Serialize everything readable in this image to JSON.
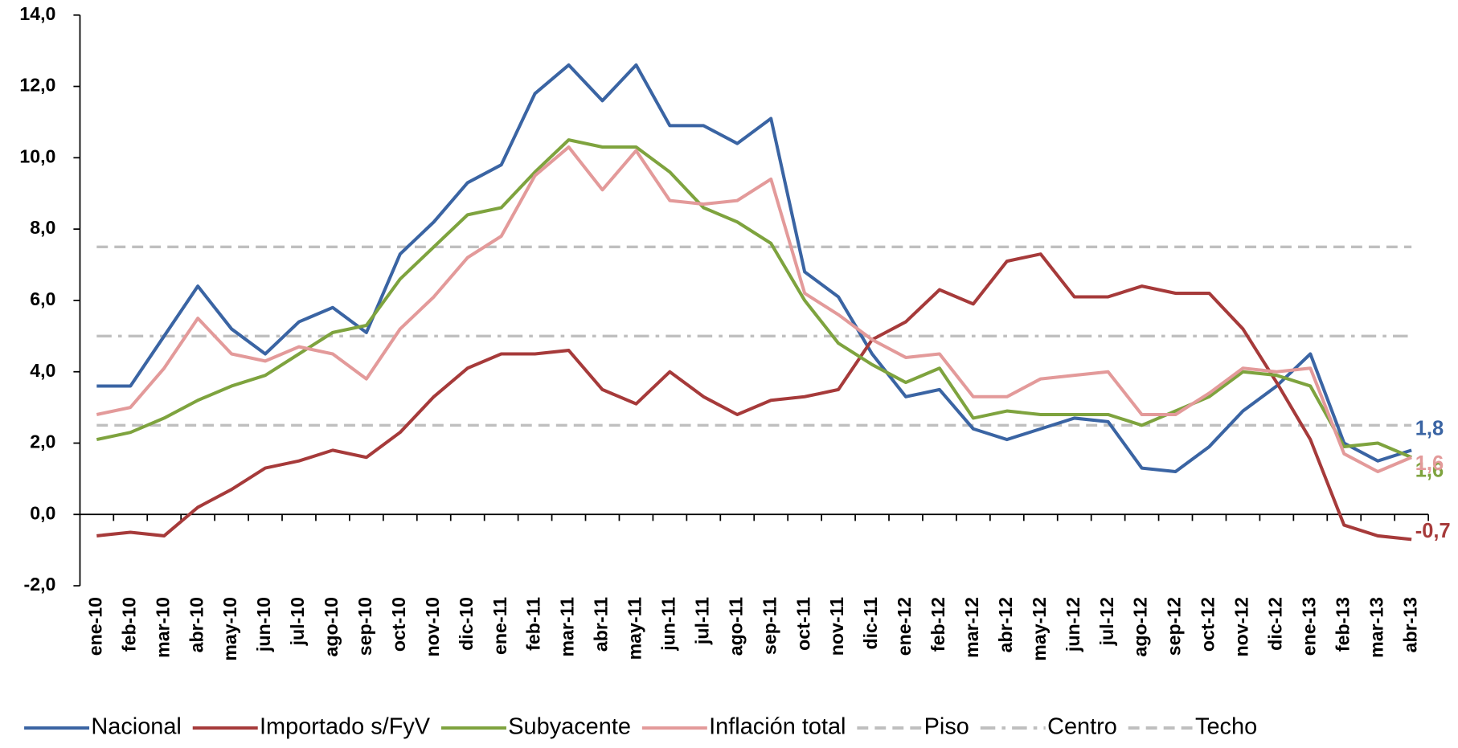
{
  "chart_data": {
    "type": "line",
    "categories": [
      "ene-10",
      "feb-10",
      "mar-10",
      "abr-10",
      "may-10",
      "jun-10",
      "jul-10",
      "ago-10",
      "sep-10",
      "oct-10",
      "nov-10",
      "dic-10",
      "ene-11",
      "feb-11",
      "mar-11",
      "abr-11",
      "may-11",
      "jun-11",
      "jul-11",
      "ago-11",
      "sep-11",
      "oct-11",
      "nov-11",
      "dic-11",
      "ene-12",
      "feb-12",
      "mar-12",
      "abr-12",
      "may-12",
      "jun-12",
      "jul-12",
      "ago-12",
      "sep-12",
      "oct-12",
      "nov-12",
      "dic-12",
      "ene-13",
      "feb-13",
      "mar-13",
      "abr-13"
    ],
    "series": [
      {
        "name": "Nacional",
        "color": "#3a64a3",
        "values": [
          3.6,
          3.6,
          5.0,
          6.4,
          5.2,
          4.5,
          5.4,
          5.8,
          5.1,
          7.3,
          8.2,
          9.3,
          9.8,
          11.8,
          12.6,
          11.6,
          12.6,
          10.9,
          10.9,
          10.4,
          11.1,
          6.8,
          6.1,
          4.5,
          3.3,
          3.5,
          2.4,
          2.1,
          2.4,
          2.7,
          2.6,
          1.3,
          1.2,
          1.9,
          2.9,
          3.6,
          4.5,
          2.0,
          1.5,
          1.8
        ],
        "value_labels": [
          null,
          null,
          null,
          null,
          null,
          null,
          null,
          null,
          null,
          null,
          null,
          null,
          null,
          null,
          null,
          null,
          null,
          null,
          null,
          null,
          null,
          null,
          null,
          null,
          null,
          null,
          null,
          null,
          null,
          null,
          null,
          null,
          null,
          null,
          null,
          null,
          null,
          null,
          null,
          "1,8"
        ]
      },
      {
        "name": "Importado s/FyV",
        "color": "#a63a3a",
        "values": [
          -0.6,
          -0.5,
          -0.6,
          0.2,
          0.7,
          1.3,
          1.5,
          1.8,
          1.6,
          2.3,
          3.3,
          4.1,
          4.5,
          4.5,
          4.6,
          3.5,
          3.1,
          4.0,
          3.3,
          2.8,
          3.2,
          3.3,
          3.5,
          4.9,
          5.4,
          6.3,
          5.9,
          7.1,
          7.3,
          6.1,
          6.1,
          6.4,
          6.2,
          6.2,
          5.2,
          3.7,
          2.1,
          -0.3,
          -0.6,
          -0.7
        ],
        "value_labels": [
          null,
          null,
          null,
          null,
          null,
          null,
          null,
          null,
          null,
          null,
          null,
          null,
          null,
          null,
          null,
          null,
          null,
          null,
          null,
          null,
          null,
          null,
          null,
          null,
          null,
          null,
          null,
          null,
          null,
          null,
          null,
          null,
          null,
          null,
          null,
          null,
          null,
          null,
          null,
          "-0,7"
        ]
      },
      {
        "name": "Subyacente",
        "color": "#7ea33e",
        "values": [
          2.1,
          2.3,
          2.7,
          3.2,
          3.6,
          3.9,
          4.5,
          5.1,
          5.3,
          6.6,
          7.5,
          8.4,
          8.6,
          9.6,
          10.5,
          10.3,
          10.3,
          9.6,
          8.6,
          8.2,
          7.6,
          6.0,
          4.8,
          4.2,
          3.7,
          4.1,
          2.7,
          2.9,
          2.8,
          2.8,
          2.8,
          2.5,
          2.9,
          3.3,
          4.0,
          3.9,
          3.6,
          1.9,
          2.0,
          1.6
        ],
        "value_labels": [
          null,
          null,
          null,
          null,
          null,
          null,
          null,
          null,
          null,
          null,
          null,
          null,
          null,
          null,
          null,
          null,
          null,
          null,
          null,
          null,
          null,
          null,
          null,
          null,
          null,
          null,
          null,
          null,
          null,
          null,
          null,
          null,
          null,
          null,
          null,
          null,
          null,
          null,
          null,
          "1,6"
        ]
      },
      {
        "name": "Inflación total",
        "color": "#e39a9a",
        "values": [
          2.8,
          3.0,
          4.1,
          5.5,
          4.5,
          4.3,
          4.7,
          4.5,
          3.8,
          5.2,
          6.1,
          7.2,
          7.8,
          9.5,
          10.3,
          9.1,
          10.2,
          8.8,
          8.7,
          8.8,
          9.4,
          6.2,
          5.6,
          4.9,
          4.4,
          4.5,
          3.3,
          3.3,
          3.8,
          3.9,
          4.0,
          2.8,
          2.8,
          3.4,
          4.1,
          4.0,
          4.1,
          1.7,
          1.2,
          1.6
        ],
        "value_labels": [
          null,
          null,
          null,
          null,
          null,
          null,
          null,
          null,
          null,
          null,
          null,
          null,
          null,
          null,
          null,
          null,
          null,
          null,
          null,
          null,
          null,
          null,
          null,
          null,
          null,
          null,
          null,
          null,
          null,
          null,
          null,
          null,
          null,
          null,
          null,
          null,
          null,
          null,
          null,
          "1,6"
        ]
      }
    ],
    "reference_lines": [
      {
        "name": "Piso",
        "value": 2.5,
        "color": "#bfbfbf",
        "dash": "dashed"
      },
      {
        "name": "Centro",
        "value": 5.0,
        "color": "#bfbfbf",
        "dash": "dashdot"
      },
      {
        "name": "Techo",
        "value": 7.5,
        "color": "#bfbfbf",
        "dash": "dashed"
      }
    ],
    "ylim": [
      -2,
      14
    ],
    "yticks": [
      {
        "value": -2,
        "label": "-2,0"
      },
      {
        "value": 0,
        "label": "0,0"
      },
      {
        "value": 2,
        "label": "2,0"
      },
      {
        "value": 4,
        "label": "4,0"
      },
      {
        "value": 6,
        "label": "6,0"
      },
      {
        "value": 8,
        "label": "8,0"
      },
      {
        "value": 10,
        "label": "10,0"
      },
      {
        "value": 12,
        "label": "12,0"
      },
      {
        "value": 14,
        "label": "14,0"
      }
    ],
    "legend": "bottom"
  }
}
